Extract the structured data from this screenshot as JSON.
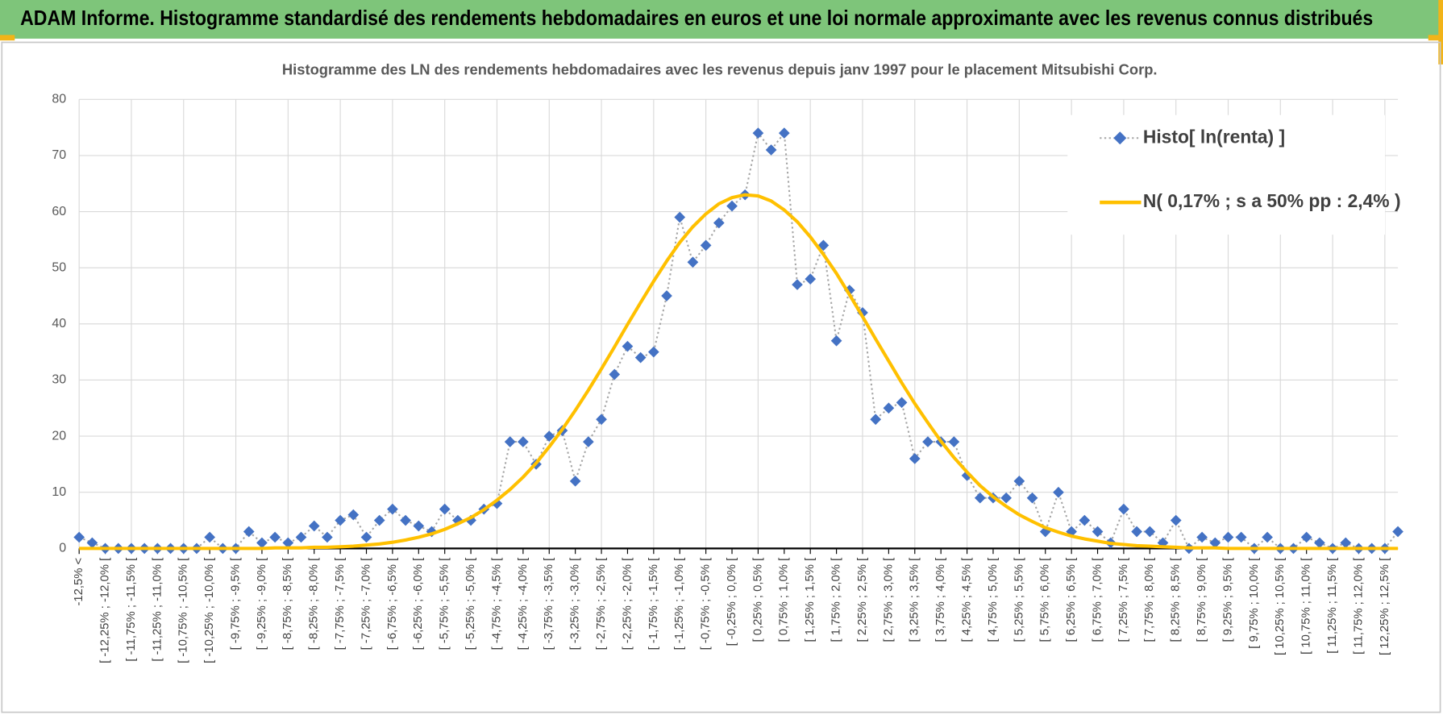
{
  "header": {
    "title": "ADAM Informe. Histogramme standardisé des rendements hebdomadaires en euros et une loi normale approximante avec les revenus connus distribués"
  },
  "chart_data": {
    "type": "line",
    "title": "Histogramme des LN des rendements hebdomadaires avec les revenus depuis janv 1997 pour le placement Mitsubishi Corp.",
    "categories": [
      "-12,5% <",
      null,
      "[ -12,25% ; -12,0% [",
      null,
      "[ -11,75% ; -11,5% [",
      null,
      "[ -11,25% ; -11,0% [",
      null,
      "[ -10,75% ; -10,5% [",
      null,
      "[ -10,25% ; -10,0% [",
      null,
      "[ -9,75% ; -9,5% [",
      null,
      "[ -9,25% ; -9,0% [",
      null,
      "[ -8,75% ; -8,5% [",
      null,
      "[ -8,25% ; -8,0% [",
      null,
      "[ -7,75% ; -7,5% [",
      null,
      "[ -7,25% ; -7,0% [",
      null,
      "[ -6,75% ; -6,5% [",
      null,
      "[ -6,25% ; -6,0% [",
      null,
      "[ -5,75% ; -5,5% [",
      null,
      "[ -5,25% ; -5,0% [",
      null,
      "[ -4,75% ; -4,5% [",
      null,
      "[ -4,25% ; -4,0% [",
      null,
      "[ -3,75% ; -3,5% [",
      null,
      "[ -3,25% ; -3,0% [",
      null,
      "[ -2,75% ; -2,5% [",
      null,
      "[ -2,25% ; -2,0% [",
      null,
      "[ -1,75% ; -1,5% [",
      null,
      "[ -1,25% ; -1,0% [",
      null,
      "[ -0,75% ; -0,5% [",
      null,
      "[ -0,25% ; 0,0% [",
      null,
      "[ 0,25% ; 0,5% [",
      null,
      "[ 0,75% ; 1,0% [",
      null,
      "[ 1,25% ; 1,5% [",
      null,
      "[ 1,75% ; 2,0% [",
      null,
      "[ 2,25% ; 2,5% [",
      null,
      "[ 2,75% ; 3,0% [",
      null,
      "[ 3,25% ; 3,5% [",
      null,
      "[ 3,75% ; 4,0% [",
      null,
      "[ 4,25% ; 4,5% [",
      null,
      "[ 4,75% ; 5,0% [",
      null,
      "[ 5,25% ; 5,5% [",
      null,
      "[ 5,75% ; 6,0% [",
      null,
      "[ 6,25% ; 6,5% [",
      null,
      "[ 6,75% ; 7,0% [",
      null,
      "[ 7,25% ; 7,5% [",
      null,
      "[ 7,75% ; 8,0% [",
      null,
      "[ 8,25% ; 8,5% [",
      null,
      "[ 8,75% ; 9,0% [",
      null,
      "[ 9,25% ; 9,5% [",
      null,
      "[ 9,75% ; 10,0% [",
      null,
      "[ 10,25% ; 10,5% [",
      null,
      "[ 10,75% ; 11,0% [",
      null,
      "[ 11,25% ; 11,5% [",
      null,
      "[ 11,75% ; 12,0% [",
      null,
      "[ 12,25% ; 12,5% [",
      null
    ],
    "series": [
      {
        "name": "Histo[ ln(renta) ]",
        "color": "#4472c4",
        "line_color": "#a5a5a5",
        "line_style": "dotted",
        "marker": "diamond",
        "values": [
          2,
          1,
          0,
          0,
          0,
          0,
          0,
          0,
          0,
          0,
          2,
          0,
          0,
          3,
          1,
          2,
          1,
          2,
          4,
          2,
          5,
          6,
          2,
          5,
          7,
          5,
          4,
          3,
          7,
          5,
          5,
          7,
          8,
          19,
          19,
          15,
          20,
          21,
          12,
          19,
          23,
          31,
          36,
          34,
          35,
          45,
          59,
          51,
          54,
          58,
          61,
          63,
          74,
          71,
          74,
          47,
          48,
          54,
          37,
          46,
          42,
          23,
          25,
          26,
          16,
          19,
          19,
          19,
          13,
          9,
          9,
          9,
          12,
          9,
          3,
          10,
          3,
          5,
          3,
          1,
          7,
          3,
          3,
          1,
          5,
          0,
          2,
          1,
          2,
          2,
          0,
          2,
          0,
          0,
          2,
          1,
          0,
          1,
          0,
          0,
          0,
          3
        ]
      },
      {
        "name": "N( 0,17% ; s a 50% pp : 2,4% )",
        "color": "#ffc000",
        "line_style": "solid",
        "marker": "none",
        "values": [
          0,
          0,
          0,
          0,
          0,
          0,
          0,
          0,
          0,
          0,
          0,
          0,
          0,
          0,
          0,
          0.1,
          0.1,
          0.1,
          0.2,
          0.2,
          0.3,
          0.4,
          0.6,
          0.8,
          1.1,
          1.5,
          2.0,
          2.6,
          3.4,
          4.4,
          5.5,
          6.9,
          8.6,
          10.5,
          12.7,
          15.2,
          18.1,
          21.2,
          24.6,
          28.2,
          32.0,
          35.9,
          39.9,
          43.8,
          47.6,
          51.2,
          54.5,
          57.3,
          59.6,
          61.4,
          62.5,
          63.0,
          62.8,
          61.9,
          60.3,
          58.2,
          55.5,
          52.4,
          49.0,
          45.2,
          41.3,
          37.3,
          33.4,
          29.5,
          25.8,
          22.4,
          19.1,
          16.2,
          13.6,
          11.2,
          9.2,
          7.5,
          6.0,
          4.8,
          3.7,
          2.9,
          2.2,
          1.7,
          1.3,
          0.9,
          0.7,
          0.5,
          0.4,
          0.3,
          0.2,
          0.1,
          0.1,
          0.1,
          0,
          0,
          0,
          0,
          0,
          0,
          0,
          0,
          0,
          0,
          0,
          0,
          0,
          0
        ]
      }
    ],
    "ylim": [
      0,
      80
    ],
    "yticks": [
      0,
      10,
      20,
      30,
      40,
      50,
      60,
      70,
      80
    ],
    "grid": true,
    "legend": "top-right"
  }
}
